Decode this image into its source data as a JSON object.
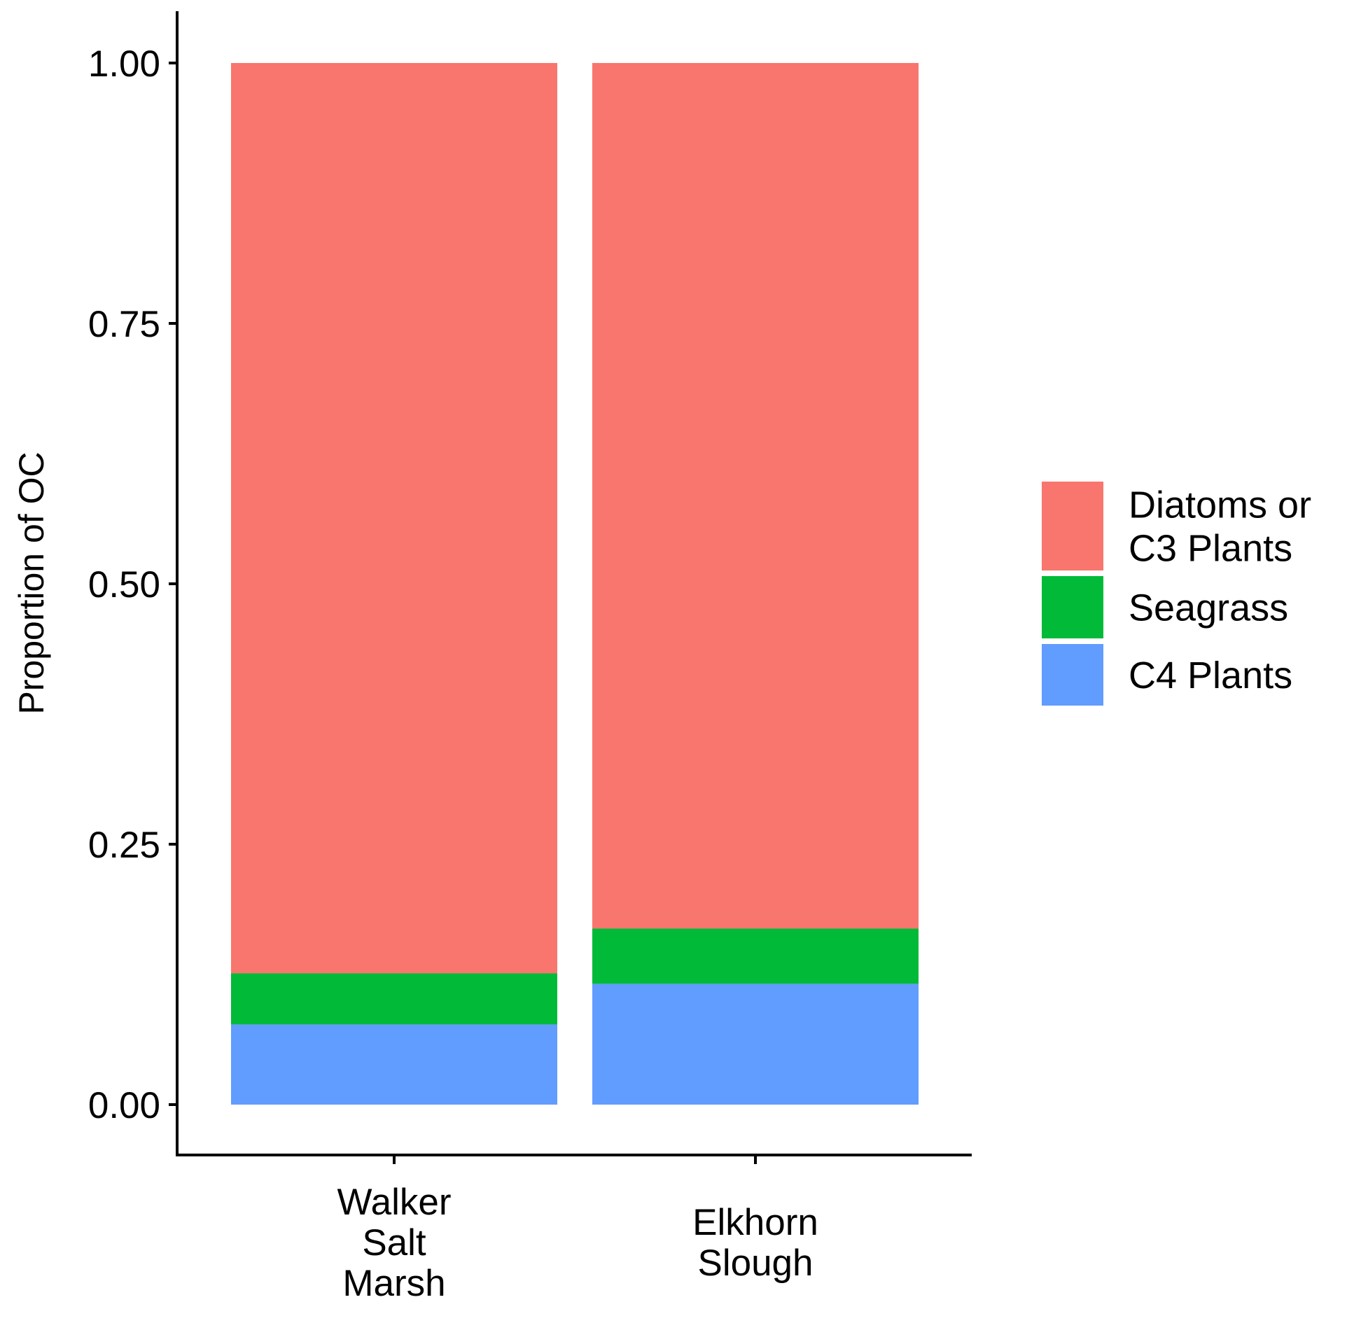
{
  "chart_data": {
    "type": "bar",
    "stacked": true,
    "title": "",
    "xlabel": "",
    "ylabel": "Proportion of OC",
    "ylim": [
      -0.05,
      1.05
    ],
    "yticks": [
      0.0,
      0.25,
      0.5,
      0.75,
      1.0
    ],
    "ytick_labels": [
      "0.00",
      "0.25",
      "0.50",
      "0.75",
      "1.00"
    ],
    "grid": false,
    "legend_position": "right",
    "categories": [
      [
        "Walker",
        "Salt",
        "Marsh"
      ],
      [
        "Elkhorn",
        "Slough"
      ]
    ],
    "series": [
      {
        "name": "C4 Plants",
        "legend_lines": [
          "C4 Plants"
        ],
        "color": "#619CFF",
        "values": [
          0.077,
          0.116
        ]
      },
      {
        "name": "Seagrass",
        "legend_lines": [
          "Seagrass"
        ],
        "color": "#00BA38",
        "values": [
          0.049,
          0.053
        ]
      },
      {
        "name": "Diatoms or C3 Plants",
        "legend_lines": [
          "Diatoms or",
          "C3 Plants"
        ],
        "color": "#F8766D",
        "values": [
          0.874,
          0.831
        ]
      }
    ]
  }
}
